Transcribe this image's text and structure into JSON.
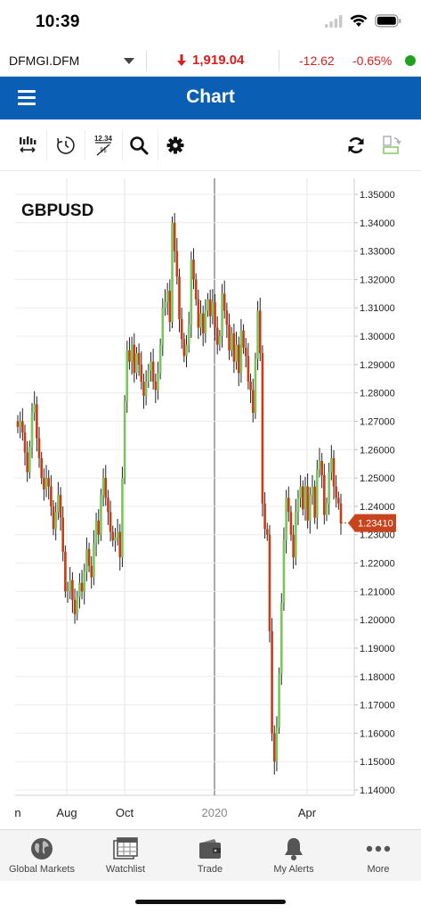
{
  "status_bar": {
    "time": "10:39"
  },
  "ticker": {
    "symbol": "DFMGI.DFM",
    "price": "1,919.04",
    "change": "-12.62",
    "change_pct": "-0.65%",
    "down_color": "#d71f1f",
    "live_color": "#1fa31f"
  },
  "header": {
    "title": "Chart",
    "color": "#0a5fb4"
  },
  "toolbar": {
    "icons": [
      "chart-type-icon",
      "history-icon",
      "indicator-values-icon",
      "search-icon",
      "settings-icon",
      "refresh-icon",
      "layout-toggle-icon"
    ],
    "indicator_label_top": "12.34",
    "indicator_label_bottom": "%"
  },
  "chart_data": {
    "type": "candlestick",
    "title": "GBPUSD",
    "last_price_label": "1.23410",
    "ylim": [
      1.137,
      1.357
    ],
    "y_ticks": [
      "1.35000",
      "1.34000",
      "1.33000",
      "1.32000",
      "1.31000",
      "1.30000",
      "1.29000",
      "1.28000",
      "1.27000",
      "1.26000",
      "1.25000",
      "1.24000",
      "1.23000",
      "1.22000",
      "1.21000",
      "1.20000",
      "1.19000",
      "1.18000",
      "1.17000",
      "1.16000",
      "1.15000",
      "1.14000"
    ],
    "x_ticks": [
      "n",
      "Aug",
      "Oct",
      "2020",
      "Apr"
    ],
    "up_color": "#7cc55c",
    "down_color": "#c83c16",
    "grid": true,
    "closes": [
      1.268,
      1.27,
      1.266,
      1.259,
      1.252,
      1.261,
      1.273,
      1.276,
      1.264,
      1.257,
      1.25,
      1.246,
      1.25,
      1.247,
      1.24,
      1.232,
      1.238,
      1.244,
      1.236,
      1.224,
      1.21,
      1.21,
      1.214,
      1.207,
      1.202,
      1.208,
      1.213,
      1.21,
      1.217,
      1.225,
      1.219,
      1.215,
      1.227,
      1.235,
      1.23,
      1.244,
      1.25,
      1.243,
      1.238,
      1.231,
      1.228,
      1.229,
      1.231,
      1.222,
      1.25,
      1.277,
      1.295,
      1.291,
      1.297,
      1.287,
      1.294,
      1.29,
      1.284,
      1.279,
      1.284,
      1.288,
      1.291,
      1.284,
      1.281,
      1.287,
      1.297,
      1.31,
      1.312,
      1.316,
      1.305,
      1.34,
      1.33,
      1.321,
      1.306,
      1.299,
      1.293,
      1.297,
      1.304,
      1.327,
      1.32,
      1.313,
      1.303,
      1.308,
      1.301,
      1.309,
      1.313,
      1.307,
      1.312,
      1.303,
      1.297,
      1.3,
      1.315,
      1.309,
      1.304,
      1.295,
      1.301,
      1.291,
      1.297,
      1.287,
      1.302,
      1.296,
      1.293,
      1.284,
      1.281,
      1.273,
      1.292,
      1.309,
      1.294,
      1.241,
      1.232,
      1.23,
      1.196,
      1.16,
      1.15,
      1.162,
      1.181,
      1.206,
      1.228,
      1.243,
      1.238,
      1.23,
      1.222,
      1.238,
      1.243,
      1.247,
      1.239,
      1.247,
      1.235,
      1.244,
      1.247,
      1.236,
      1.253,
      1.256,
      1.251,
      1.237,
      1.241,
      1.252,
      1.257,
      1.247,
      1.243,
      1.241,
      1.234
    ]
  },
  "bottom_nav": [
    {
      "label": "Global Markets",
      "icon": "globe-icon"
    },
    {
      "label": "Watchlist",
      "icon": "watchlist-icon"
    },
    {
      "label": "Trade",
      "icon": "wallet-icon"
    },
    {
      "label": "My Alerts",
      "icon": "bell-icon"
    },
    {
      "label": "More",
      "icon": "more-icon"
    }
  ]
}
